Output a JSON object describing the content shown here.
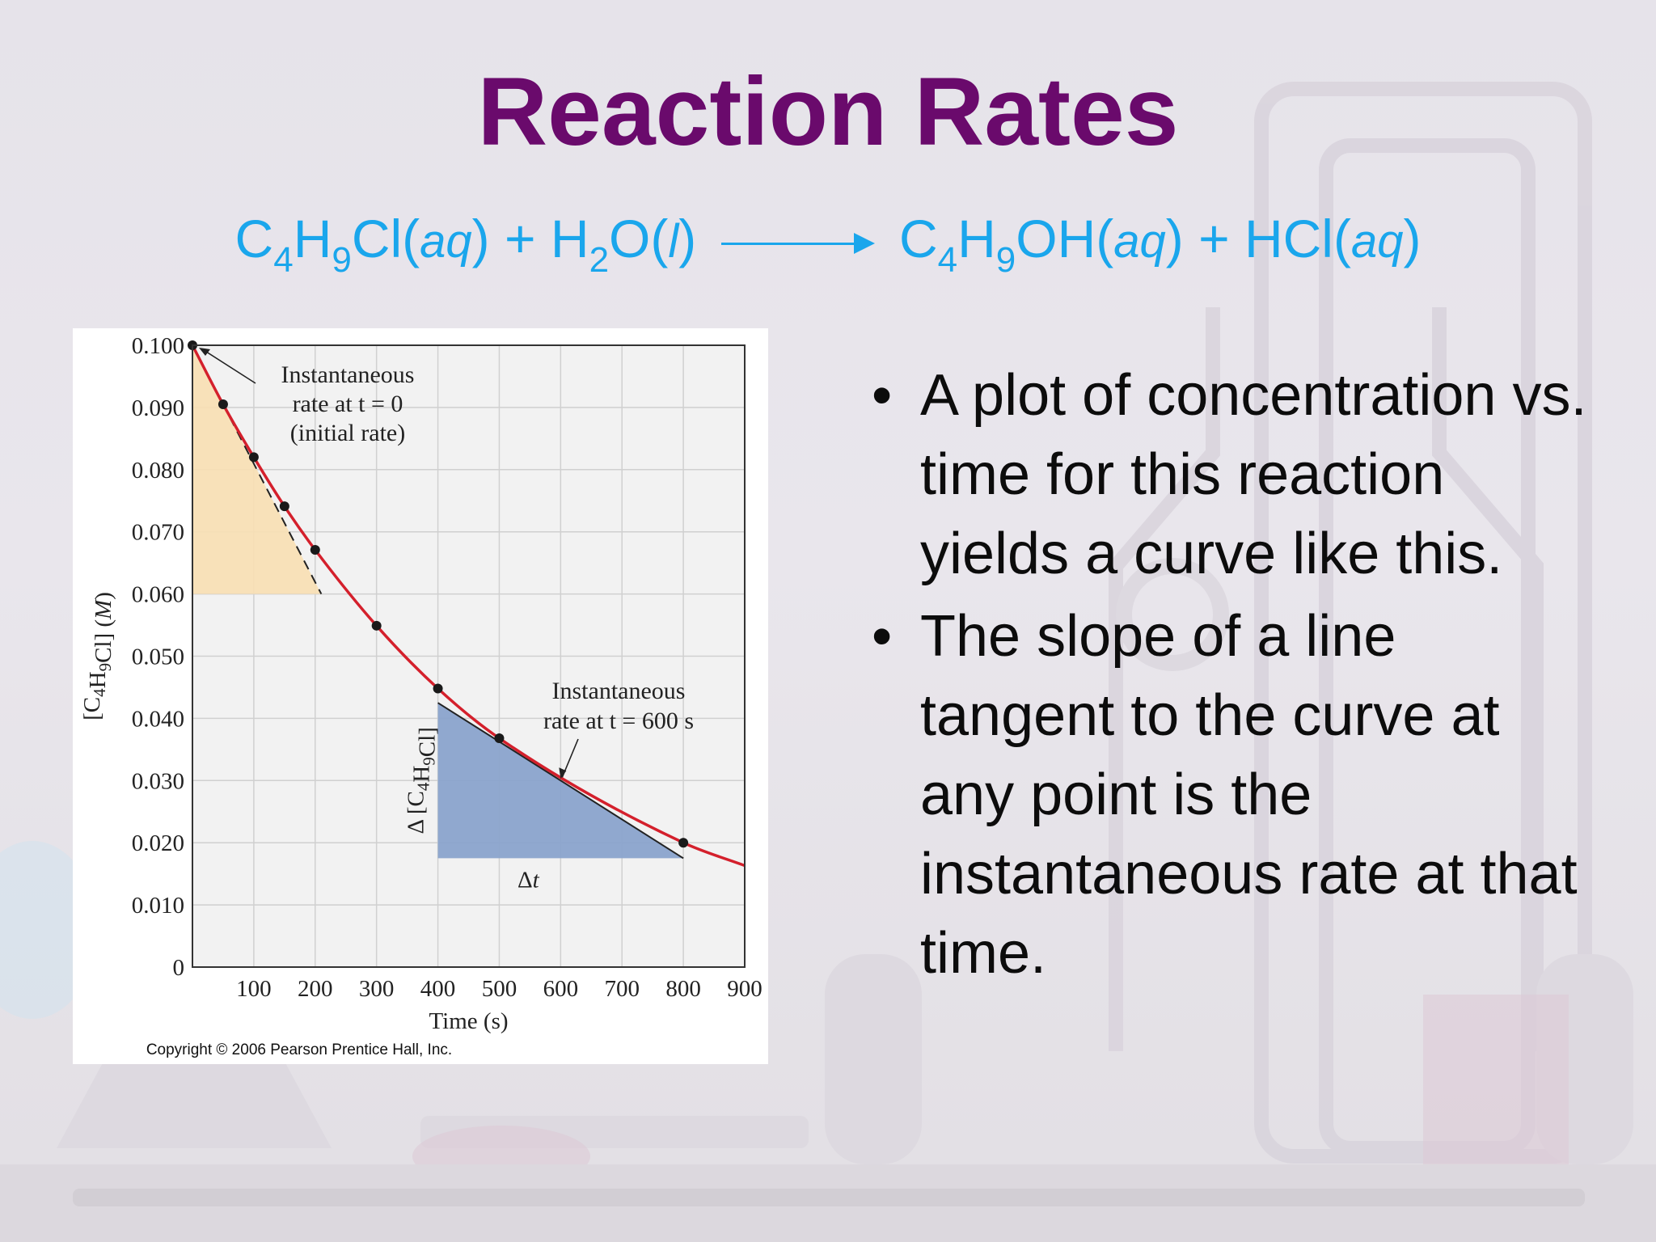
{
  "slide": {
    "title": "Reaction Rates",
    "equation": {
      "reactant1": {
        "parts": [
          "C",
          "4",
          "H",
          "9",
          "Cl"
        ],
        "state": "aq"
      },
      "plus": "+",
      "reactant2": {
        "parts": [
          "H",
          "2",
          "O"
        ],
        "state": "l"
      },
      "product1": {
        "parts": [
          "C",
          "4",
          "H",
          "9",
          "OH"
        ],
        "state": "aq"
      },
      "product2": {
        "parts": [
          "HCl"
        ],
        "state": "aq"
      }
    },
    "bullets": [
      "A plot of concentration vs. time for this reaction yields a curve like this.",
      "The slope of a line tangent to the curve at any point is the instantaneous rate at that time."
    ],
    "bullet_symbol": "•",
    "copyright": "Copyright © 2006 Pearson Prentice Hall, Inc.",
    "colors": {
      "title": "#6a0a6c",
      "equation": "#1aa6ec",
      "curve": "#d4202c",
      "initial_triangle": "#f8dfb2",
      "tangent_triangle": "#8aa3cc"
    }
  },
  "chart_data": {
    "type": "line",
    "xlabel": "Time (s)",
    "ylabel": "[C4H9Cl] (M)",
    "xlim": [
      0,
      900
    ],
    "ylim": [
      0,
      0.1
    ],
    "x_ticks": [
      "100",
      "200",
      "300",
      "400",
      "500",
      "600",
      "700",
      "800",
      "900"
    ],
    "y_ticks": [
      "0",
      "0.010",
      "0.020",
      "0.030",
      "0.040",
      "0.050",
      "0.060",
      "0.070",
      "0.080",
      "0.090",
      "0.100"
    ],
    "grid": true,
    "series": [
      {
        "x": [
          0,
          50,
          100,
          150,
          200,
          300,
          400,
          500,
          800
        ],
        "y": [
          0.1,
          0.0905,
          0.082,
          0.0741,
          0.0671,
          0.0549,
          0.0448,
          0.0368,
          0.02
        ]
      }
    ],
    "curve_extends_to_x": 900,
    "annotations": [
      {
        "text_lines": [
          "Instantaneous",
          "rate at t = 0",
          "(initial rate)"
        ],
        "points_to": [
          0,
          0.1
        ]
      },
      {
        "text_lines": [
          "Instantaneous",
          "rate at t = 600 s"
        ],
        "points_to": [
          600,
          0.03
        ]
      },
      {
        "text": "Δ [C4H9Cl]",
        "refers_to": "vertical side of tangent triangle"
      },
      {
        "text": "Δt",
        "refers_to": "horizontal side of tangent triangle"
      }
    ],
    "initial_rate_tangent": {
      "from": [
        0,
        0.1
      ],
      "to": [
        210,
        0.06
      ]
    },
    "initial_rate_triangle": {
      "x": [
        0,
        210
      ],
      "y": [
        0.06,
        0.1
      ]
    },
    "tangent_600s": {
      "from": [
        400,
        0.0425
      ],
      "to": [
        800,
        0.0175
      ]
    },
    "tangent_triangle": {
      "x": [
        400,
        800
      ],
      "y": [
        0.0175,
        0.0425
      ]
    }
  }
}
